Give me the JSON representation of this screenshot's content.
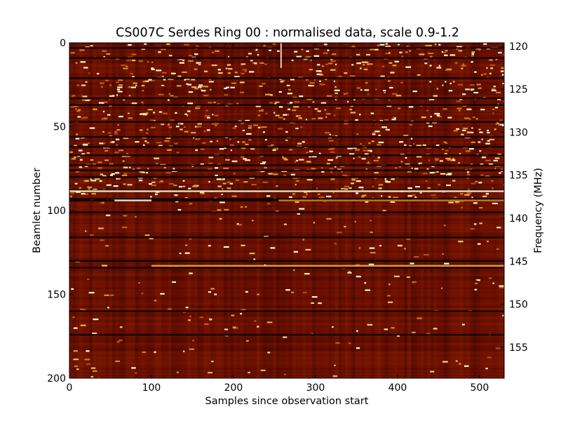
{
  "chart_data": {
    "type": "heatmap",
    "title": "CS007C Serdes Ring 00 : normalised data, scale 0.9-1.2",
    "xlabel": "Samples since observation start",
    "ylabel": "Beamlet number",
    "y2label": "Frequency (MHz)",
    "xlim": [
      0,
      530
    ],
    "ylim": [
      200,
      0
    ],
    "y2lim": [
      119.6,
      158.6
    ],
    "xticks": [
      0,
      100,
      200,
      300,
      400,
      500
    ],
    "yticks": [
      0,
      50,
      100,
      150,
      200
    ],
    "y2ticks": [
      120,
      125,
      130,
      135,
      140,
      145,
      150,
      155
    ],
    "color_scale": [
      0.9,
      1.2
    ],
    "colormap": "afmhot",
    "colormap_stops": [
      "#000000",
      "#6a0e00",
      "#a23a05",
      "#c85a0a",
      "#e8a020",
      "#fff8d0"
    ],
    "base_level": 0.96,
    "dark_rows": [
      3,
      9,
      21,
      33,
      37,
      47,
      56,
      62,
      67,
      73,
      76,
      80,
      88,
      93,
      94,
      101,
      116,
      130,
      134,
      160,
      174
    ],
    "bright_row_bands": [
      {
        "beamlet": 88.5,
        "x_from": 0,
        "x_to": 530,
        "level": 1.2
      },
      {
        "beamlet": 94,
        "x_from": 55,
        "x_to": 100,
        "level": 1.2
      },
      {
        "beamlet": 94,
        "x_from": 255,
        "x_to": 530,
        "level": 1.12
      },
      {
        "beamlet": 133,
        "x_from": 100,
        "x_to": 530,
        "level": 1.15
      }
    ],
    "bright_columns": [
      {
        "sample": 258,
        "beamlet_from": 0,
        "beamlet_to": 15,
        "level": 1.2
      }
    ],
    "dense_speckle_region": {
      "beamlet_from": 0,
      "beamlet_to": 95
    },
    "sparse_speckle_region": {
      "beamlet_from": 95,
      "beamlet_to": 200
    }
  }
}
